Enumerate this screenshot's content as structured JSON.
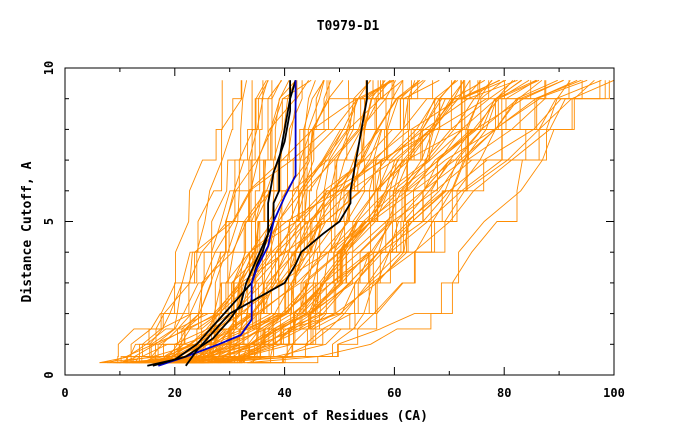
{
  "chart_data": {
    "type": "line",
    "title": "T0979-D1",
    "xlabel": "Percent of Residues (CA)",
    "ylabel": "Distance Cutoff, A",
    "xlim": [
      0,
      100
    ],
    "ylim": [
      0,
      10
    ],
    "x_ticks": [
      "0",
      "20",
      "40",
      "60",
      "80",
      "100"
    ],
    "y_ticks": [
      "0",
      "5",
      "10"
    ],
    "grid": false,
    "legend": "none",
    "colors": {
      "background_series": "#ff8c00",
      "highlight_blue": "#0000cc",
      "highlight_black": "#000000"
    },
    "background_series": {
      "count": 110,
      "color": "#ff8c00",
      "y_levels": [
        0.4,
        0.6,
        1.0,
        1.5,
        2.0,
        3.0,
        4.0,
        5.0,
        6.0,
        7.0,
        8.0,
        9.0,
        9.6
      ],
      "x_start_range": [
        6,
        34
      ],
      "x_end_range": [
        28,
        100
      ]
    },
    "series": [
      {
        "color": "#000000",
        "points": [
          [
            15,
            0.3
          ],
          [
            20,
            0.5
          ],
          [
            24,
            1.0
          ],
          [
            27,
            1.6
          ],
          [
            30,
            2.2
          ],
          [
            32,
            2.6
          ],
          [
            34,
            3.0
          ],
          [
            35,
            3.6
          ],
          [
            36,
            4.0
          ],
          [
            37,
            4.6
          ],
          [
            38,
            5.0
          ],
          [
            38,
            5.6
          ],
          [
            39,
            6.0
          ],
          [
            39,
            7.0
          ],
          [
            40,
            8.0
          ],
          [
            41,
            9.0
          ],
          [
            42,
            9.6
          ]
        ]
      },
      {
        "color": "#0000cc",
        "points": [
          [
            17,
            0.3
          ],
          [
            22,
            0.6
          ],
          [
            28,
            1.0
          ],
          [
            32,
            1.3
          ],
          [
            34,
            1.8
          ],
          [
            34,
            2.5
          ],
          [
            34,
            3.0
          ],
          [
            35,
            3.5
          ],
          [
            37,
            4.2
          ],
          [
            38,
            5.0
          ],
          [
            40,
            5.8
          ],
          [
            42,
            6.5
          ],
          [
            42,
            7.5
          ],
          [
            42,
            8.5
          ],
          [
            42,
            9.6
          ]
        ]
      },
      {
        "color": "#000000",
        "points": [
          [
            16,
            0.3
          ],
          [
            22,
            0.6
          ],
          [
            27,
            1.2
          ],
          [
            30,
            1.8
          ],
          [
            32,
            2.3
          ],
          [
            33,
            3.0
          ],
          [
            35,
            3.8
          ],
          [
            37,
            4.6
          ],
          [
            37,
            5.6
          ],
          [
            38,
            6.6
          ],
          [
            40,
            7.6
          ],
          [
            41,
            8.6
          ],
          [
            41,
            9.6
          ]
        ]
      },
      {
        "color": "#000000",
        "points": [
          [
            22,
            0.3
          ],
          [
            24,
            0.8
          ],
          [
            27,
            1.4
          ],
          [
            30,
            2.0
          ],
          [
            35,
            2.5
          ],
          [
            40,
            3.0
          ],
          [
            42,
            3.6
          ],
          [
            43,
            4.0
          ],
          [
            47,
            4.6
          ],
          [
            50,
            5.0
          ],
          [
            52,
            5.6
          ],
          [
            52,
            6.0
          ],
          [
            53,
            7.0
          ],
          [
            54,
            8.0
          ],
          [
            55,
            9.0
          ],
          [
            55,
            9.6
          ]
        ]
      }
    ]
  }
}
